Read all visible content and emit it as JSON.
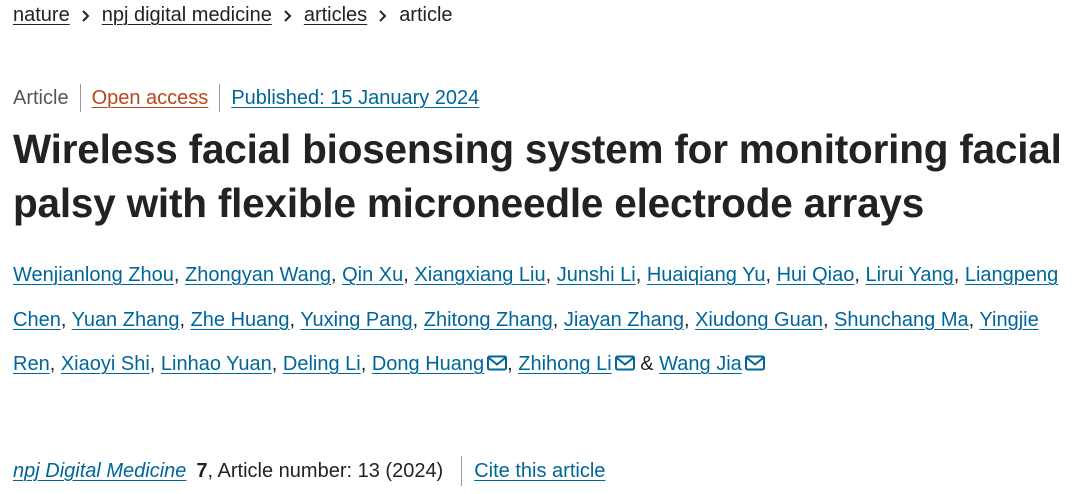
{
  "breadcrumbs": [
    "nature",
    "npj digital medicine",
    "articles",
    "article"
  ],
  "meta": {
    "type": "Article",
    "access": "Open access",
    "published": "Published: 15 January 2024"
  },
  "title": "Wireless facial biosensing system for monitoring facial palsy with flexible microneedle electrode arrays",
  "authors": [
    {
      "name": "Wenjianlong Zhou"
    },
    {
      "name": "Zhongyan Wang"
    },
    {
      "name": "Qin Xu"
    },
    {
      "name": "Xiangxiang Liu"
    },
    {
      "name": "Junshi Li"
    },
    {
      "name": "Huaiqiang Yu"
    },
    {
      "name": "Hui Qiao"
    },
    {
      "name": "Lirui Yang"
    },
    {
      "name": "Liangpeng Chen"
    },
    {
      "name": "Yuan Zhang"
    },
    {
      "name": "Zhe Huang"
    },
    {
      "name": "Yuxing Pang"
    },
    {
      "name": "Zhitong Zhang"
    },
    {
      "name": "Jiayan Zhang"
    },
    {
      "name": "Xiudong Guan"
    },
    {
      "name": "Shunchang Ma"
    },
    {
      "name": "Yingjie Ren"
    },
    {
      "name": "Xiaoyi Shi"
    },
    {
      "name": "Linhao Yuan"
    },
    {
      "name": "Deling Li"
    },
    {
      "name": "Dong Huang",
      "corresponding": true
    },
    {
      "name": "Zhihong Li",
      "corresponding": true
    },
    {
      "name": "Wang Jia",
      "corresponding": true
    }
  ],
  "author_separator": ",",
  "author_conjunction": "&",
  "citation": {
    "journal": "npj Digital Medicine",
    "volume": "7",
    "details": ", Article number: 13 (2024)",
    "cite": "Cite this article"
  }
}
